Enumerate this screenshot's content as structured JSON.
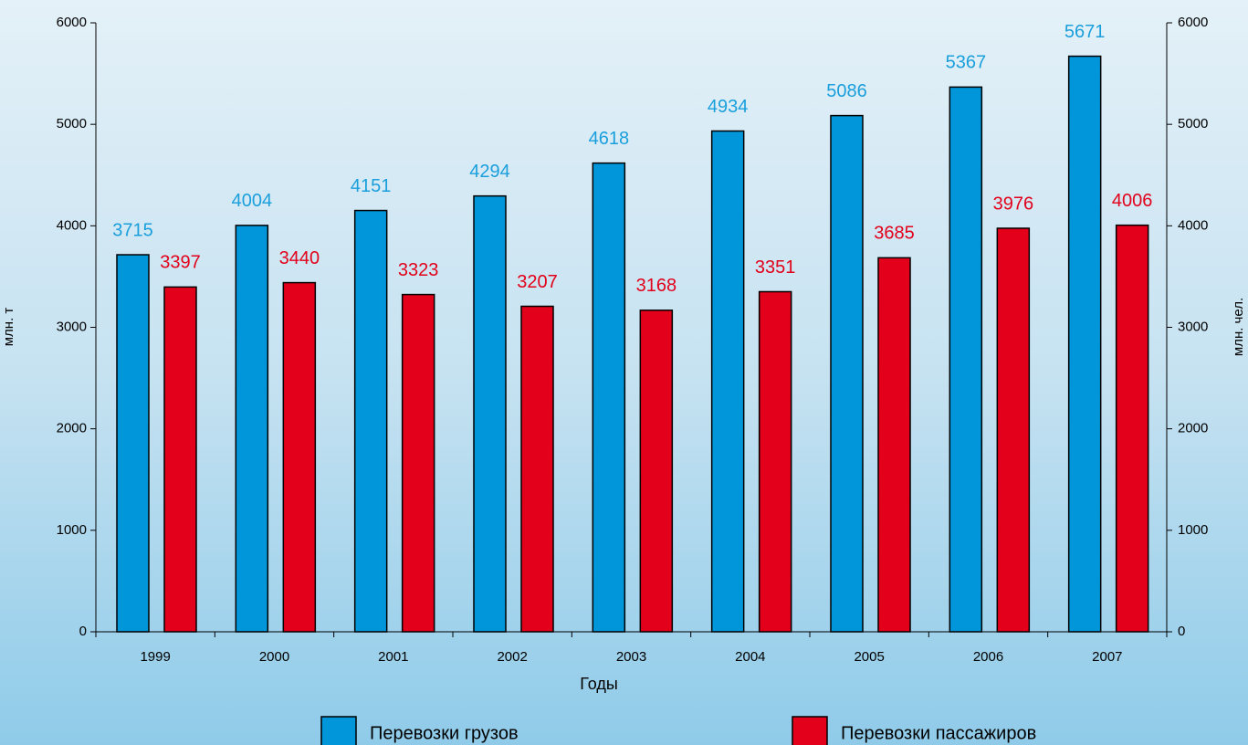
{
  "chart_data": {
    "type": "bar",
    "categories": [
      "1999",
      "2000",
      "2001",
      "2002",
      "2003",
      "2004",
      "2005",
      "2006",
      "2007"
    ],
    "x_label": "Годы",
    "y_label": "млн. т",
    "y2_label": "млн. чел.",
    "series": [
      {
        "name": "Перевозки грузов",
        "color": "#0096d9",
        "label_color": "#1a9fdc",
        "values": [
          3715,
          4004,
          4151,
          4294,
          4618,
          4934,
          5086,
          5367,
          5671
        ]
      },
      {
        "name": "Перевозки пассажиров",
        "color": "#e2001a",
        "label_color": "#e2001a",
        "axis": "y2",
        "values": [
          3397,
          3440,
          3323,
          3207,
          3168,
          3351,
          3685,
          3976,
          4006
        ]
      }
    ],
    "ylim": [
      0,
      6000
    ],
    "yticks": [
      0,
      1000,
      2000,
      3000,
      4000,
      5000,
      6000
    ],
    "y2lim": [
      0,
      6000
    ],
    "y2ticks": [
      0,
      1000,
      2000,
      3000,
      4000,
      5000,
      6000
    ],
    "grid": false,
    "legend": "bottom"
  }
}
